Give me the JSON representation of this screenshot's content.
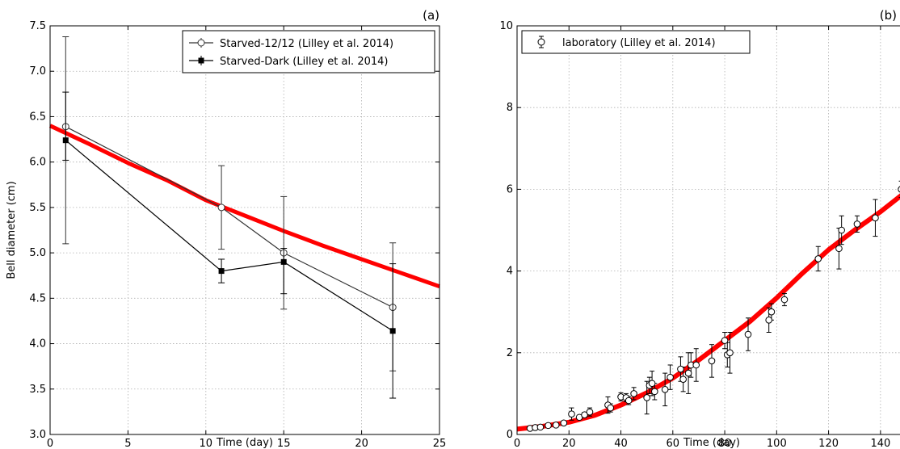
{
  "chart_data": [
    {
      "type": "line",
      "panel_label": "(a)",
      "xlabel": "Time (day)",
      "ylabel": "Bell diameter (cm)",
      "xlim": [
        0,
        25
      ],
      "ylim": [
        3.0,
        7.5
      ],
      "xticks": [
        0,
        5,
        10,
        15,
        20,
        25
      ],
      "yticks": [
        3.0,
        3.5,
        4.0,
        4.5,
        5.0,
        5.5,
        6.0,
        6.5,
        7.0,
        7.5
      ],
      "grid": true,
      "legend_position": "top-right",
      "series": [
        {
          "name": "Starved-12/12 (Lilley et al. 2014)",
          "marker": "open-circle",
          "color": "#333333",
          "x": [
            1,
            11,
            15,
            22
          ],
          "y": [
            6.39,
            5.5,
            5.0,
            4.4
          ],
          "err_low": [
            5.1,
            5.04,
            4.38,
            3.7
          ],
          "err_high": [
            7.38,
            5.96,
            5.62,
            5.11
          ]
        },
        {
          "name": "Starved-Dark (Lilley et al. 2014)",
          "marker": "filled-square",
          "color": "#000000",
          "x": [
            1,
            11,
            15,
            22
          ],
          "y": [
            6.24,
            4.8,
            4.9,
            4.14
          ],
          "err_low": [
            6.02,
            4.67,
            4.55,
            3.4
          ],
          "err_high": [
            6.77,
            4.93,
            5.05,
            4.88
          ]
        }
      ],
      "model_curve": {
        "color": "#ff0000",
        "x": [
          0,
          2.5,
          5,
          7.5,
          10,
          12.5,
          15,
          17.5,
          20,
          22.5,
          25
        ],
        "y": [
          6.4,
          6.2,
          5.99,
          5.8,
          5.58,
          5.41,
          5.24,
          5.08,
          4.93,
          4.78,
          4.63
        ]
      }
    },
    {
      "type": "scatter",
      "panel_label": "(b)",
      "xlabel": "Time (day)",
      "ylabel": "",
      "xlim": [
        0,
        150
      ],
      "ylim": [
        0,
        10
      ],
      "xticks": [
        0,
        20,
        40,
        60,
        80,
        100,
        120,
        140
      ],
      "yticks": [
        0,
        2,
        4,
        6,
        8,
        10
      ],
      "grid": true,
      "legend_position": "top-left",
      "series": [
        {
          "name": "laboratory (Lilley et al. 2014)",
          "marker": "open-circle",
          "color": "#000000",
          "points": [
            [
              5,
              0.15,
              0.02
            ],
            [
              7,
              0.17,
              0.03
            ],
            [
              9,
              0.18,
              0.03
            ],
            [
              12,
              0.22,
              0.03
            ],
            [
              15,
              0.23,
              0.05
            ],
            [
              18,
              0.28,
              0.05
            ],
            [
              21,
              0.5,
              0.15
            ],
            [
              24,
              0.42,
              0.05
            ],
            [
              26,
              0.48,
              0.06
            ],
            [
              28,
              0.55,
              0.1
            ],
            [
              35,
              0.72,
              0.2
            ],
            [
              36,
              0.65,
              0.1
            ],
            [
              40,
              0.92,
              0.1
            ],
            [
              42,
              0.9,
              0.1
            ],
            [
              43,
              0.83,
              0.1
            ],
            [
              45,
              1.0,
              0.15
            ],
            [
              50,
              0.9,
              0.4
            ],
            [
              51,
              1.2,
              0.2
            ],
            [
              52,
              1.25,
              0.3
            ],
            [
              53,
              1.05,
              0.2
            ],
            [
              57,
              1.1,
              0.4
            ],
            [
              59,
              1.4,
              0.3
            ],
            [
              63,
              1.6,
              0.3
            ],
            [
              64,
              1.35,
              0.3
            ],
            [
              66,
              1.5,
              0.5
            ],
            [
              67,
              1.7,
              0.3
            ],
            [
              69,
              1.7,
              0.4
            ],
            [
              75,
              1.8,
              0.4
            ],
            [
              80,
              2.3,
              0.2
            ],
            [
              81,
              1.95,
              0.3
            ],
            [
              82,
              2.0,
              0.5
            ],
            [
              89,
              2.45,
              0.4
            ],
            [
              97,
              2.8,
              0.3
            ],
            [
              98,
              3.0,
              0.2
            ],
            [
              103,
              3.3,
              0.15
            ],
            [
              116,
              4.3,
              0.3
            ],
            [
              124,
              4.55,
              0.5
            ],
            [
              125,
              5.0,
              0.35
            ],
            [
              131,
              5.15,
              0.2
            ],
            [
              138,
              5.3,
              0.45
            ],
            [
              148,
              6.0,
              0.2
            ]
          ]
        }
      ],
      "model_curve": {
        "color": "#ff0000",
        "x": [
          0,
          10,
          20,
          30,
          40,
          50,
          60,
          70,
          80,
          90,
          100,
          110,
          120,
          130,
          140,
          150
        ],
        "y": [
          0.13,
          0.2,
          0.3,
          0.47,
          0.72,
          1.02,
          1.38,
          1.82,
          2.3,
          2.78,
          3.34,
          3.95,
          4.52,
          5.0,
          5.45,
          5.95
        ]
      }
    }
  ]
}
